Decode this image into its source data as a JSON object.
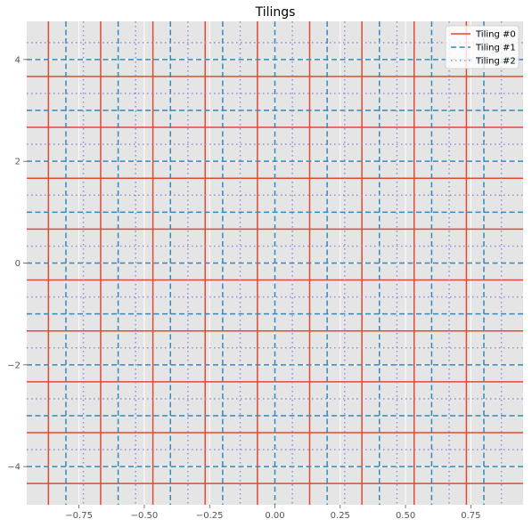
{
  "chart_data": {
    "type": "line",
    "title": "Tilings",
    "xlabel": "",
    "ylabel": "",
    "xlim": [
      -0.95,
      0.95
    ],
    "ylim": [
      -4.75,
      4.75
    ],
    "grid": true,
    "legend_placement": "top-right",
    "x_ticks": [
      -0.75,
      -0.5,
      -0.25,
      0.0,
      0.25,
      0.5,
      0.75
    ],
    "x_tick_labels": [
      "−0.75",
      "−0.50",
      "−0.25",
      "0.00",
      "0.25",
      "0.50",
      "0.75"
    ],
    "y_ticks": [
      -4,
      -2,
      0,
      2,
      4
    ],
    "y_tick_labels": [
      "−4",
      "−2",
      "0",
      "2",
      "4"
    ],
    "series": [
      {
        "name": "Tiling #0",
        "color": "#e24a33",
        "style": "solid",
        "vertical_x": [
          -0.867,
          -0.667,
          -0.467,
          -0.267,
          -0.067,
          0.133,
          0.333,
          0.533,
          0.733
        ],
        "horizontal_y": [
          -4.333,
          -3.333,
          -2.333,
          -1.333,
          -0.333,
          0.667,
          1.667,
          2.667,
          3.667
        ]
      },
      {
        "name": "Tiling #1",
        "color": "#348abd",
        "style": "dashed",
        "vertical_x": [
          -0.8,
          -0.6,
          -0.4,
          -0.2,
          0.0,
          0.2,
          0.4,
          0.6,
          0.8
        ],
        "horizontal_y": [
          -4,
          -3,
          -2,
          -1,
          0,
          1,
          2,
          3,
          4
        ]
      },
      {
        "name": "Tiling #2",
        "color": "#988ed5",
        "style": "dotted",
        "vertical_x": [
          -0.733,
          -0.533,
          -0.333,
          -0.133,
          0.067,
          0.267,
          0.467,
          0.667,
          0.867
        ],
        "horizontal_y": [
          -3.667,
          -2.667,
          -1.667,
          -0.667,
          0.333,
          1.333,
          2.333,
          3.333,
          4.333
        ]
      }
    ]
  }
}
